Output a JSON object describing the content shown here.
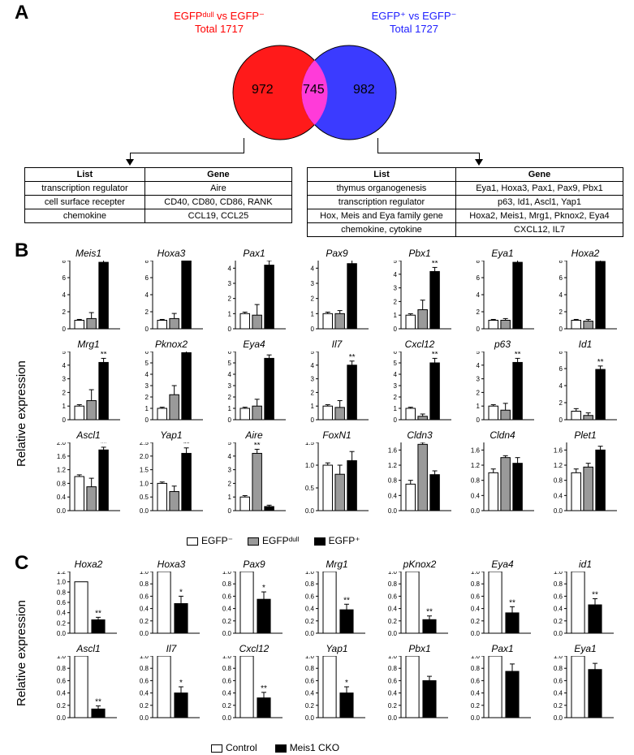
{
  "panelA": {
    "label": "A",
    "left_title_l1": "EGFPᵈᵘˡˡ vs EGFP⁻",
    "left_title_l2": "Total 1717",
    "right_title_l1": "EGFP⁺ vs EGFP⁻",
    "right_title_l2": "Total 1727",
    "venn": {
      "left_color": "#ff1a1a",
      "right_color": "#3b3bff",
      "overlap_color": "#ff3bd9",
      "left_value": "972",
      "overlap_value": "745",
      "right_value": "982"
    },
    "left_table": {
      "headers": [
        "List",
        "Gene"
      ],
      "rows": [
        [
          "transcription regulator",
          "Aire"
        ],
        [
          "cell surface recepter",
          "CD40, CD80, CD86, RANK"
        ],
        [
          "chemokine",
          "CCL19, CCL25"
        ]
      ]
    },
    "right_table": {
      "headers": [
        "List",
        "Gene"
      ],
      "rows": [
        [
          "thymus organogenesis",
          "Eya1, Hoxa3, Pax1, Pax9, Pbx1"
        ],
        [
          "transcription regulator",
          "p63, Id1, Ascl1, Yap1"
        ],
        [
          "Hox, Meis and Eya family gene",
          "Hoxa2, Meis1, Mrg1, Pknox2, Eya4"
        ],
        [
          "chemokine, cytokine",
          "CXCL12, IL7"
        ]
      ]
    }
  },
  "panelB": {
    "label": "B",
    "axis_label": "Relative expression",
    "bar_colors": {
      "neg": "#ffffff",
      "dull": "#9a9a9a",
      "pos": "#000000"
    },
    "border_color": "#000000",
    "font_size_title": 12,
    "font_size_tick": 8,
    "charts": [
      {
        "name": "Meis1",
        "vals": [
          1.0,
          1.2,
          7.8
        ],
        "errs": [
          0.1,
          0.7,
          0.4
        ],
        "ymax": 8,
        "sig": "**",
        "sig_on": 2
      },
      {
        "name": "Hoxa3",
        "vals": [
          1.0,
          1.2,
          8.2
        ],
        "errs": [
          0.1,
          0.6,
          0.4
        ],
        "ymax": 8,
        "sig": "**",
        "sig_on": 2
      },
      {
        "name": "Pax1",
        "vals": [
          1.0,
          0.9,
          4.2
        ],
        "errs": [
          0.1,
          0.7,
          0.3
        ],
        "ymax": 4.5,
        "sig": "**",
        "sig_on": 2
      },
      {
        "name": "Pax9",
        "vals": [
          1.0,
          1.0,
          4.3
        ],
        "errs": [
          0.1,
          0.2,
          0.3
        ],
        "ymax": 4.5,
        "sig": "**",
        "sig_on": 2
      },
      {
        "name": "Pbx1",
        "vals": [
          1.0,
          1.4,
          4.2
        ],
        "errs": [
          0.1,
          0.7,
          0.3
        ],
        "ymax": 5,
        "sig": "**",
        "sig_on": 2
      },
      {
        "name": "Eya1",
        "vals": [
          1.0,
          1.0,
          7.8
        ],
        "errs": [
          0.1,
          0.2,
          0.4
        ],
        "ymax": 8,
        "sig": "**",
        "sig_on": 2
      },
      {
        "name": "Hoxa2",
        "vals": [
          1.0,
          0.9,
          7.9
        ],
        "errs": [
          0.1,
          0.2,
          0.4
        ],
        "ymax": 8,
        "sig": "**",
        "sig_on": 2
      },
      {
        "name": "Mrg1",
        "vals": [
          1.0,
          1.4,
          4.2
        ],
        "errs": [
          0.1,
          0.8,
          0.3
        ],
        "ymax": 5,
        "sig": "**",
        "sig_on": 2
      },
      {
        "name": "Pknox2",
        "vals": [
          1.0,
          2.2,
          5.9
        ],
        "errs": [
          0.1,
          0.8,
          0.3
        ],
        "ymax": 6,
        "sig": "**",
        "sig_on": 2
      },
      {
        "name": "Eya4",
        "vals": [
          1.0,
          1.2,
          5.4
        ],
        "errs": [
          0.1,
          0.6,
          0.3
        ],
        "ymax": 6,
        "sig": "**",
        "sig_on": 2
      },
      {
        "name": "Il7",
        "vals": [
          1.0,
          0.9,
          4.0
        ],
        "errs": [
          0.1,
          0.5,
          0.3
        ],
        "ymax": 5,
        "sig": "**",
        "sig_on": 2
      },
      {
        "name": "Cxcl12",
        "vals": [
          1.0,
          0.3,
          5.0
        ],
        "errs": [
          0.1,
          0.2,
          0.4
        ],
        "ymax": 6,
        "sig": "**",
        "sig_on": 2
      },
      {
        "name": "p63",
        "vals": [
          1.0,
          0.7,
          4.2
        ],
        "errs": [
          0.1,
          0.5,
          0.3
        ],
        "ymax": 5,
        "sig": "**",
        "sig_on": 2
      },
      {
        "name": "Id1",
        "vals": [
          1.0,
          0.5,
          5.9
        ],
        "errs": [
          0.3,
          0.3,
          0.4
        ],
        "ymax": 8,
        "sig": "**",
        "sig_on": 2
      },
      {
        "name": "Ascl1",
        "vals": [
          1.0,
          0.7,
          1.78
        ],
        "errs": [
          0.05,
          0.25,
          0.08
        ],
        "ymax": 2.0,
        "ystep": 0.4,
        "sig": "**",
        "sig_on": 2
      },
      {
        "name": "Yap1",
        "vals": [
          1.0,
          0.7,
          2.1
        ],
        "errs": [
          0.05,
          0.2,
          0.2
        ],
        "ymax": 2.5,
        "ystep": 0.5,
        "sig": "**",
        "sig_on": 2
      },
      {
        "name": "Aire",
        "vals": [
          1.0,
          4.2,
          0.3
        ],
        "errs": [
          0.1,
          0.3,
          0.1
        ],
        "ymax": 5,
        "sig": "**",
        "sig_on": 1
      },
      {
        "name": "FoxN1",
        "vals": [
          1.0,
          0.8,
          1.1
        ],
        "errs": [
          0.05,
          0.2,
          0.2
        ],
        "ymax": 1.5,
        "ystep": 0.5
      },
      {
        "name": "Cldn3",
        "vals": [
          0.7,
          1.75,
          0.95
        ],
        "errs": [
          0.1,
          0.05,
          0.1
        ],
        "ymax": 1.8,
        "ystep": 0.4
      },
      {
        "name": "Cldn4",
        "vals": [
          1.0,
          1.4,
          1.25
        ],
        "errs": [
          0.1,
          0.05,
          0.15
        ],
        "ymax": 1.8,
        "ystep": 0.4
      },
      {
        "name": "Plet1",
        "vals": [
          1.0,
          1.15,
          1.6
        ],
        "errs": [
          0.1,
          0.1,
          0.1
        ],
        "ymax": 1.8,
        "ystep": 0.4
      }
    ],
    "legend": [
      {
        "key": "neg",
        "label": "EGFP⁻"
      },
      {
        "key": "dull",
        "label": "EGFPᵈᵘˡˡ"
      },
      {
        "key": "pos",
        "label": "EGFP⁺"
      }
    ]
  },
  "panelC": {
    "label": "C",
    "axis_label": "Relative expression",
    "bar_colors": {
      "ctrl": "#ffffff",
      "cko": "#000000"
    },
    "border_color": "#000000",
    "charts": [
      {
        "name": "Hoxa2",
        "vals": [
          1.0,
          0.26
        ],
        "errs": [
          0,
          0.05
        ],
        "ymax": 1.2,
        "sig": "**"
      },
      {
        "name": "Hoxa3",
        "vals": [
          1.0,
          0.48
        ],
        "errs": [
          0,
          0.12
        ],
        "ymax": 1.0,
        "sig": "*"
      },
      {
        "name": "Pax9",
        "vals": [
          1.0,
          0.55
        ],
        "errs": [
          0,
          0.12
        ],
        "ymax": 1.0,
        "sig": "*"
      },
      {
        "name": "Mrg1",
        "vals": [
          1.0,
          0.38
        ],
        "errs": [
          0,
          0.09
        ],
        "ymax": 1.0,
        "sig": "**"
      },
      {
        "name": "pKnox2",
        "vals": [
          1.0,
          0.22
        ],
        "errs": [
          0,
          0.06
        ],
        "ymax": 1.0,
        "sig": "**"
      },
      {
        "name": "Eya4",
        "vals": [
          1.0,
          0.33
        ],
        "errs": [
          0,
          0.1
        ],
        "ymax": 1.0,
        "sig": "**"
      },
      {
        "name": "id1",
        "vals": [
          1.0,
          0.46
        ],
        "errs": [
          0,
          0.1
        ],
        "ymax": 1.0,
        "sig": "**"
      },
      {
        "name": "Ascl1",
        "vals": [
          1.0,
          0.14
        ],
        "errs": [
          0,
          0.05
        ],
        "ymax": 1.0,
        "sig": "**"
      },
      {
        "name": "Il7",
        "vals": [
          1.0,
          0.4
        ],
        "errs": [
          0,
          0.1
        ],
        "ymax": 1.0,
        "sig": "*"
      },
      {
        "name": "Cxcl12",
        "vals": [
          1.0,
          0.32
        ],
        "errs": [
          0,
          0.09
        ],
        "ymax": 1.0,
        "sig": "**"
      },
      {
        "name": "Yap1",
        "vals": [
          1.0,
          0.4
        ],
        "errs": [
          0,
          0.1
        ],
        "ymax": 1.0,
        "sig": "*"
      },
      {
        "name": "Pbx1",
        "vals": [
          1.0,
          0.6
        ],
        "errs": [
          0,
          0.07
        ],
        "ymax": 1.0
      },
      {
        "name": "Pax1",
        "vals": [
          1.0,
          0.75
        ],
        "errs": [
          0,
          0.12
        ],
        "ymax": 1.0
      },
      {
        "name": "Eya1",
        "vals": [
          1.0,
          0.78
        ],
        "errs": [
          0,
          0.1
        ],
        "ymax": 1.0
      }
    ],
    "legend": [
      {
        "key": "ctrl",
        "label": "Control"
      },
      {
        "key": "cko",
        "label": "Meis1 CKO"
      }
    ]
  }
}
